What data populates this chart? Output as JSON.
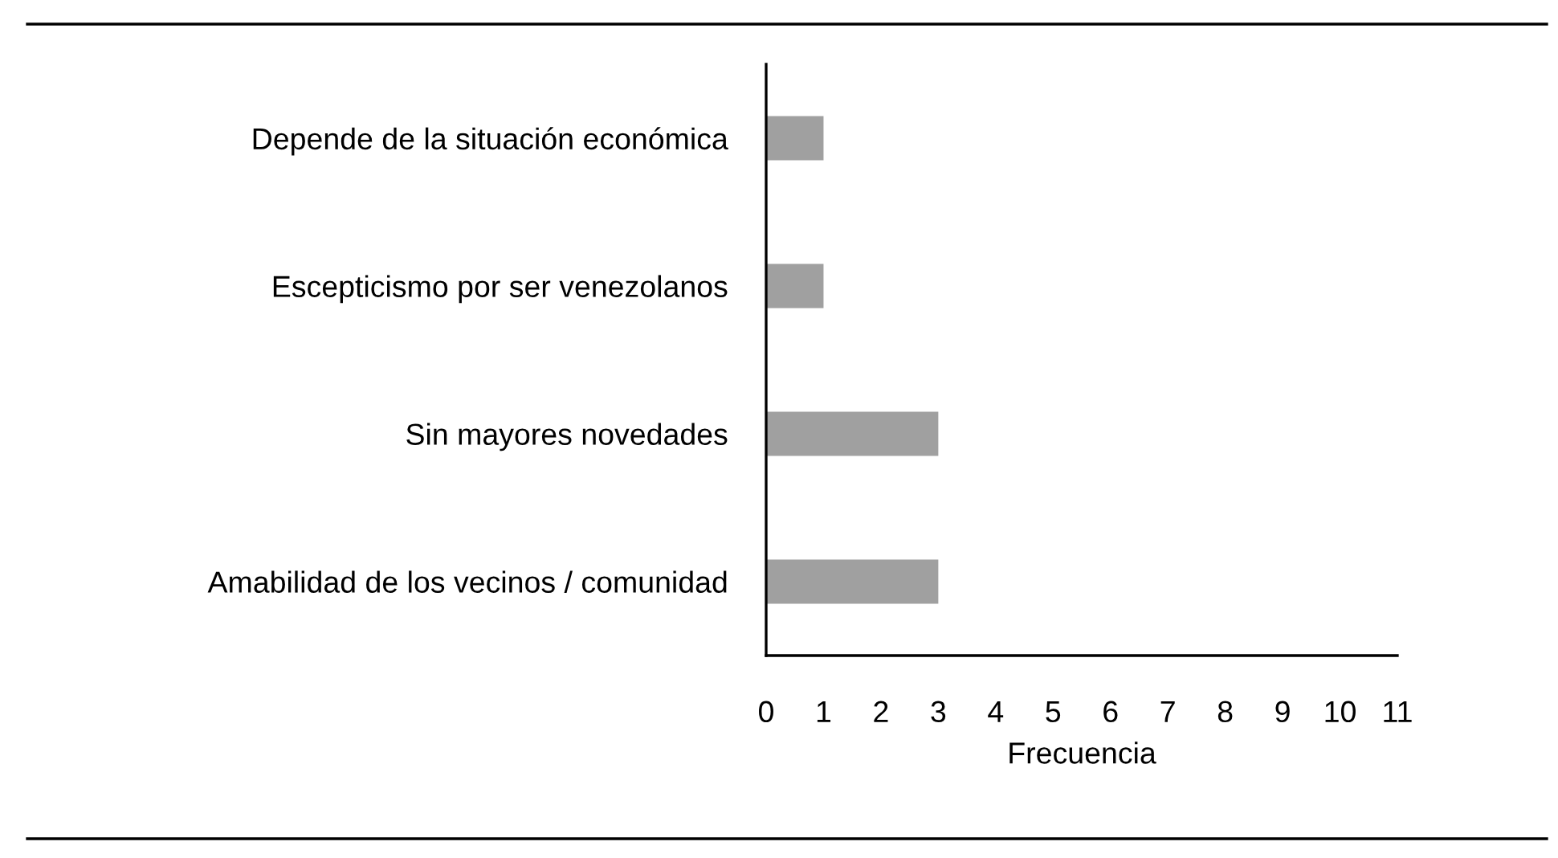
{
  "chart_data": {
    "type": "bar",
    "orientation": "horizontal",
    "categories": [
      "Depende de la situación económica",
      "Escepticismo por ser venezolanos",
      "Sin mayores novedades",
      "Amabilidad de los vecinos / comunidad"
    ],
    "values": [
      1,
      1,
      3,
      3
    ],
    "color": "#a0a0a0",
    "xlabel": "Frecuencia",
    "xlim": [
      0,
      11
    ],
    "xticks": [
      0,
      1,
      2,
      3,
      4,
      5,
      6,
      7,
      8,
      9,
      10,
      11
    ]
  }
}
